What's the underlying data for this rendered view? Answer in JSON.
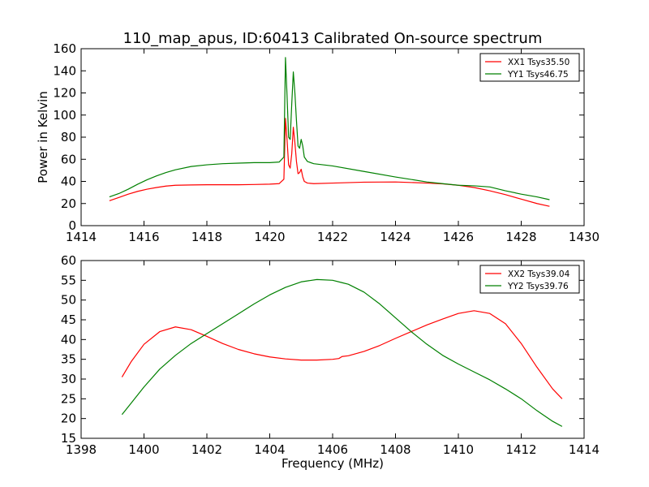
{
  "figure": {
    "title": "110_map_apus, ID:60413 Calibrated On-source spectrum",
    "xlabel": "Frequency (MHz)",
    "ylabel": "Power in Kelvin"
  },
  "chart_data": [
    {
      "type": "line",
      "title": "110_map_apus, ID:60413 Calibrated On-source spectrum",
      "xlabel": "",
      "ylabel": "Power in Kelvin",
      "xlim": [
        1414,
        1430
      ],
      "ylim": [
        0,
        160
      ],
      "xticks": [
        1414,
        1416,
        1418,
        1420,
        1422,
        1424,
        1426,
        1428,
        1430
      ],
      "yticks": [
        0,
        20,
        40,
        60,
        80,
        100,
        120,
        140,
        160
      ],
      "grid": false,
      "legend_position": "top-right",
      "series": [
        {
          "name": "XX1 Tsys35.50",
          "color": "#ff0000",
          "x": [
            1414.9,
            1415.2,
            1415.5,
            1415.8,
            1416.1,
            1416.4,
            1416.7,
            1417.0,
            1417.5,
            1418.0,
            1418.5,
            1419.0,
            1419.5,
            1420.0,
            1420.3,
            1420.45,
            1420.5,
            1420.55,
            1420.6,
            1420.65,
            1420.7,
            1420.75,
            1420.8,
            1420.85,
            1420.9,
            1420.95,
            1421.0,
            1421.05,
            1421.1,
            1421.2,
            1421.4,
            1422.0,
            1423.0,
            1424.0,
            1425.0,
            1425.5,
            1426.0,
            1426.5,
            1427.0,
            1427.5,
            1428.0,
            1428.5,
            1428.9
          ],
          "y": [
            22.5,
            25.5,
            28.5,
            31.0,
            33.0,
            34.5,
            35.8,
            36.5,
            36.8,
            37.0,
            37.0,
            37.0,
            37.2,
            37.5,
            38.0,
            42.0,
            97.0,
            78.0,
            55.0,
            52.0,
            65.0,
            89.0,
            75.0,
            58.0,
            47.0,
            48.0,
            51.0,
            44.0,
            40.0,
            38.5,
            38.0,
            38.5,
            39.3,
            39.5,
            38.5,
            37.8,
            36.5,
            34.5,
            31.5,
            28.0,
            24.0,
            20.0,
            17.5
          ]
        },
        {
          "name": "YY1 Tsys46.75",
          "color": "#008000",
          "x": [
            1414.9,
            1415.2,
            1415.5,
            1415.8,
            1416.1,
            1416.4,
            1416.7,
            1417.0,
            1417.5,
            1418.0,
            1418.5,
            1419.0,
            1419.5,
            1420.0,
            1420.3,
            1420.45,
            1420.5,
            1420.55,
            1420.6,
            1420.65,
            1420.7,
            1420.75,
            1420.8,
            1420.85,
            1420.9,
            1420.95,
            1421.0,
            1421.05,
            1421.1,
            1421.2,
            1421.4,
            1422.0,
            1423.0,
            1424.0,
            1425.0,
            1425.5,
            1426.0,
            1426.5,
            1427.0,
            1427.5,
            1428.0,
            1428.5,
            1428.9
          ],
          "y": [
            26.0,
            29.0,
            33.0,
            37.5,
            41.5,
            45.0,
            48.0,
            50.5,
            53.5,
            55.0,
            56.0,
            56.5,
            57.0,
            57.0,
            57.5,
            62.0,
            152.0,
            118.0,
            80.0,
            78.0,
            110.0,
            139.0,
            120.0,
            95.0,
            72.0,
            70.0,
            78.0,
            72.0,
            62.0,
            58.0,
            56.0,
            54.0,
            49.0,
            44.0,
            39.5,
            38.0,
            36.5,
            36.0,
            35.0,
            31.5,
            28.5,
            26.0,
            23.5
          ]
        }
      ]
    },
    {
      "type": "line",
      "title": "",
      "xlabel": "Frequency (MHz)",
      "ylabel": "",
      "xlim": [
        1398,
        1414
      ],
      "ylim": [
        15,
        60
      ],
      "xticks": [
        1398,
        1400,
        1402,
        1404,
        1406,
        1408,
        1410,
        1412,
        1414
      ],
      "yticks": [
        15,
        20,
        25,
        30,
        35,
        40,
        45,
        50,
        55,
        60
      ],
      "grid": false,
      "legend_position": "top-right",
      "series": [
        {
          "name": "XX2 Tsys39.04",
          "color": "#ff0000",
          "x": [
            1399.3,
            1399.6,
            1400.0,
            1400.5,
            1401.0,
            1401.5,
            1402.0,
            1402.5,
            1403.0,
            1403.5,
            1404.0,
            1404.5,
            1405.0,
            1405.5,
            1406.0,
            1406.2,
            1406.3,
            1406.5,
            1407.0,
            1407.5,
            1408.0,
            1408.5,
            1409.0,
            1409.5,
            1410.0,
            1410.5,
            1411.0,
            1411.5,
            1412.0,
            1412.5,
            1413.0,
            1413.3
          ],
          "y": [
            30.5,
            34.5,
            38.8,
            42.0,
            43.2,
            42.5,
            40.8,
            39.0,
            37.5,
            36.4,
            35.6,
            35.1,
            34.8,
            34.8,
            35.0,
            35.2,
            35.7,
            35.9,
            37.0,
            38.5,
            40.3,
            42.0,
            43.7,
            45.2,
            46.6,
            47.3,
            46.6,
            44.0,
            39.0,
            33.0,
            27.5,
            25.0
          ]
        },
        {
          "name": "YY2 Tsys39.76",
          "color": "#008000",
          "x": [
            1399.3,
            1399.6,
            1400.0,
            1400.5,
            1401.0,
            1401.5,
            1402.0,
            1402.5,
            1403.0,
            1403.5,
            1404.0,
            1404.5,
            1405.0,
            1405.5,
            1406.0,
            1406.3,
            1406.5,
            1407.0,
            1407.5,
            1408.0,
            1408.5,
            1409.0,
            1409.5,
            1410.0,
            1410.5,
            1411.0,
            1411.5,
            1412.0,
            1412.5,
            1413.0,
            1413.3
          ],
          "y": [
            21.0,
            24.0,
            28.0,
            32.5,
            36.0,
            39.0,
            41.5,
            44.0,
            46.5,
            49.0,
            51.3,
            53.2,
            54.6,
            55.2,
            55.0,
            54.4,
            54.0,
            52.0,
            49.0,
            45.5,
            42.0,
            38.8,
            36.0,
            33.8,
            31.8,
            29.8,
            27.5,
            25.0,
            22.0,
            19.3,
            18.0
          ]
        }
      ]
    }
  ]
}
